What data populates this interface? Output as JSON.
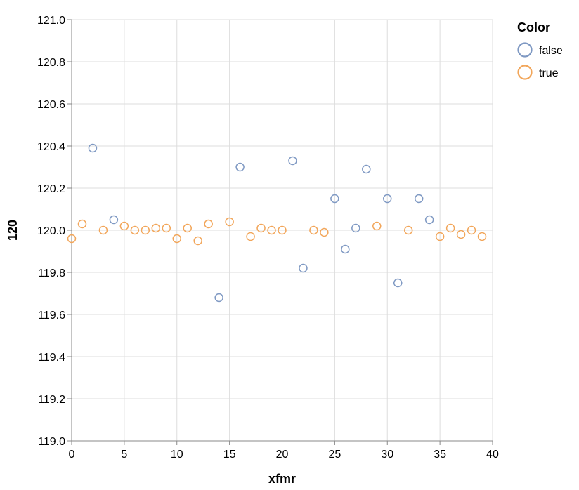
{
  "chart_data": {
    "type": "scatter",
    "xlabel": "xfmr",
    "ylabel": "120",
    "xlim": [
      0,
      40
    ],
    "ylim": [
      119.0,
      121.0
    ],
    "x_ticks": [
      "0",
      "5",
      "10",
      "15",
      "20",
      "25",
      "30",
      "35",
      "40"
    ],
    "y_ticks": [
      "119.0",
      "119.2",
      "119.4",
      "119.6",
      "119.8",
      "120.0",
      "120.2",
      "120.4",
      "120.6",
      "120.8",
      "121.0"
    ],
    "grid": true,
    "legend": {
      "title": "Color",
      "placement": "top-right",
      "entries": [
        {
          "label": "false",
          "color": "#7f99c3"
        },
        {
          "label": "true",
          "color": "#f2a65a"
        }
      ]
    },
    "series": [
      {
        "name": "false",
        "color": "#7f99c3",
        "points": [
          {
            "x": 2,
            "y": 120.39
          },
          {
            "x": 4,
            "y": 120.05
          },
          {
            "x": 14,
            "y": 119.68
          },
          {
            "x": 16,
            "y": 120.3
          },
          {
            "x": 21,
            "y": 120.33
          },
          {
            "x": 22,
            "y": 119.82
          },
          {
            "x": 25,
            "y": 120.15
          },
          {
            "x": 26,
            "y": 119.91
          },
          {
            "x": 27,
            "y": 120.01
          },
          {
            "x": 28,
            "y": 120.29
          },
          {
            "x": 30,
            "y": 120.15
          },
          {
            "x": 31,
            "y": 119.75
          },
          {
            "x": 33,
            "y": 120.15
          },
          {
            "x": 34,
            "y": 120.05
          }
        ]
      },
      {
        "name": "true",
        "color": "#f2a65a",
        "points": [
          {
            "x": 0,
            "y": 119.96
          },
          {
            "x": 1,
            "y": 120.03
          },
          {
            "x": 3,
            "y": 120.0
          },
          {
            "x": 5,
            "y": 120.02
          },
          {
            "x": 6,
            "y": 120.0
          },
          {
            "x": 7,
            "y": 120.0
          },
          {
            "x": 8,
            "y": 120.01
          },
          {
            "x": 9,
            "y": 120.01
          },
          {
            "x": 10,
            "y": 119.96
          },
          {
            "x": 11,
            "y": 120.01
          },
          {
            "x": 12,
            "y": 119.95
          },
          {
            "x": 13,
            "y": 120.03
          },
          {
            "x": 15,
            "y": 120.04
          },
          {
            "x": 17,
            "y": 119.97
          },
          {
            "x": 18,
            "y": 120.01
          },
          {
            "x": 19,
            "y": 120.0
          },
          {
            "x": 20,
            "y": 120.0
          },
          {
            "x": 23,
            "y": 120.0
          },
          {
            "x": 24,
            "y": 119.99
          },
          {
            "x": 29,
            "y": 120.02
          },
          {
            "x": 32,
            "y": 120.0
          },
          {
            "x": 35,
            "y": 119.97
          },
          {
            "x": 36,
            "y": 120.01
          },
          {
            "x": 37,
            "y": 119.98
          },
          {
            "x": 38,
            "y": 120.0
          },
          {
            "x": 39,
            "y": 119.97
          }
        ]
      }
    ]
  }
}
